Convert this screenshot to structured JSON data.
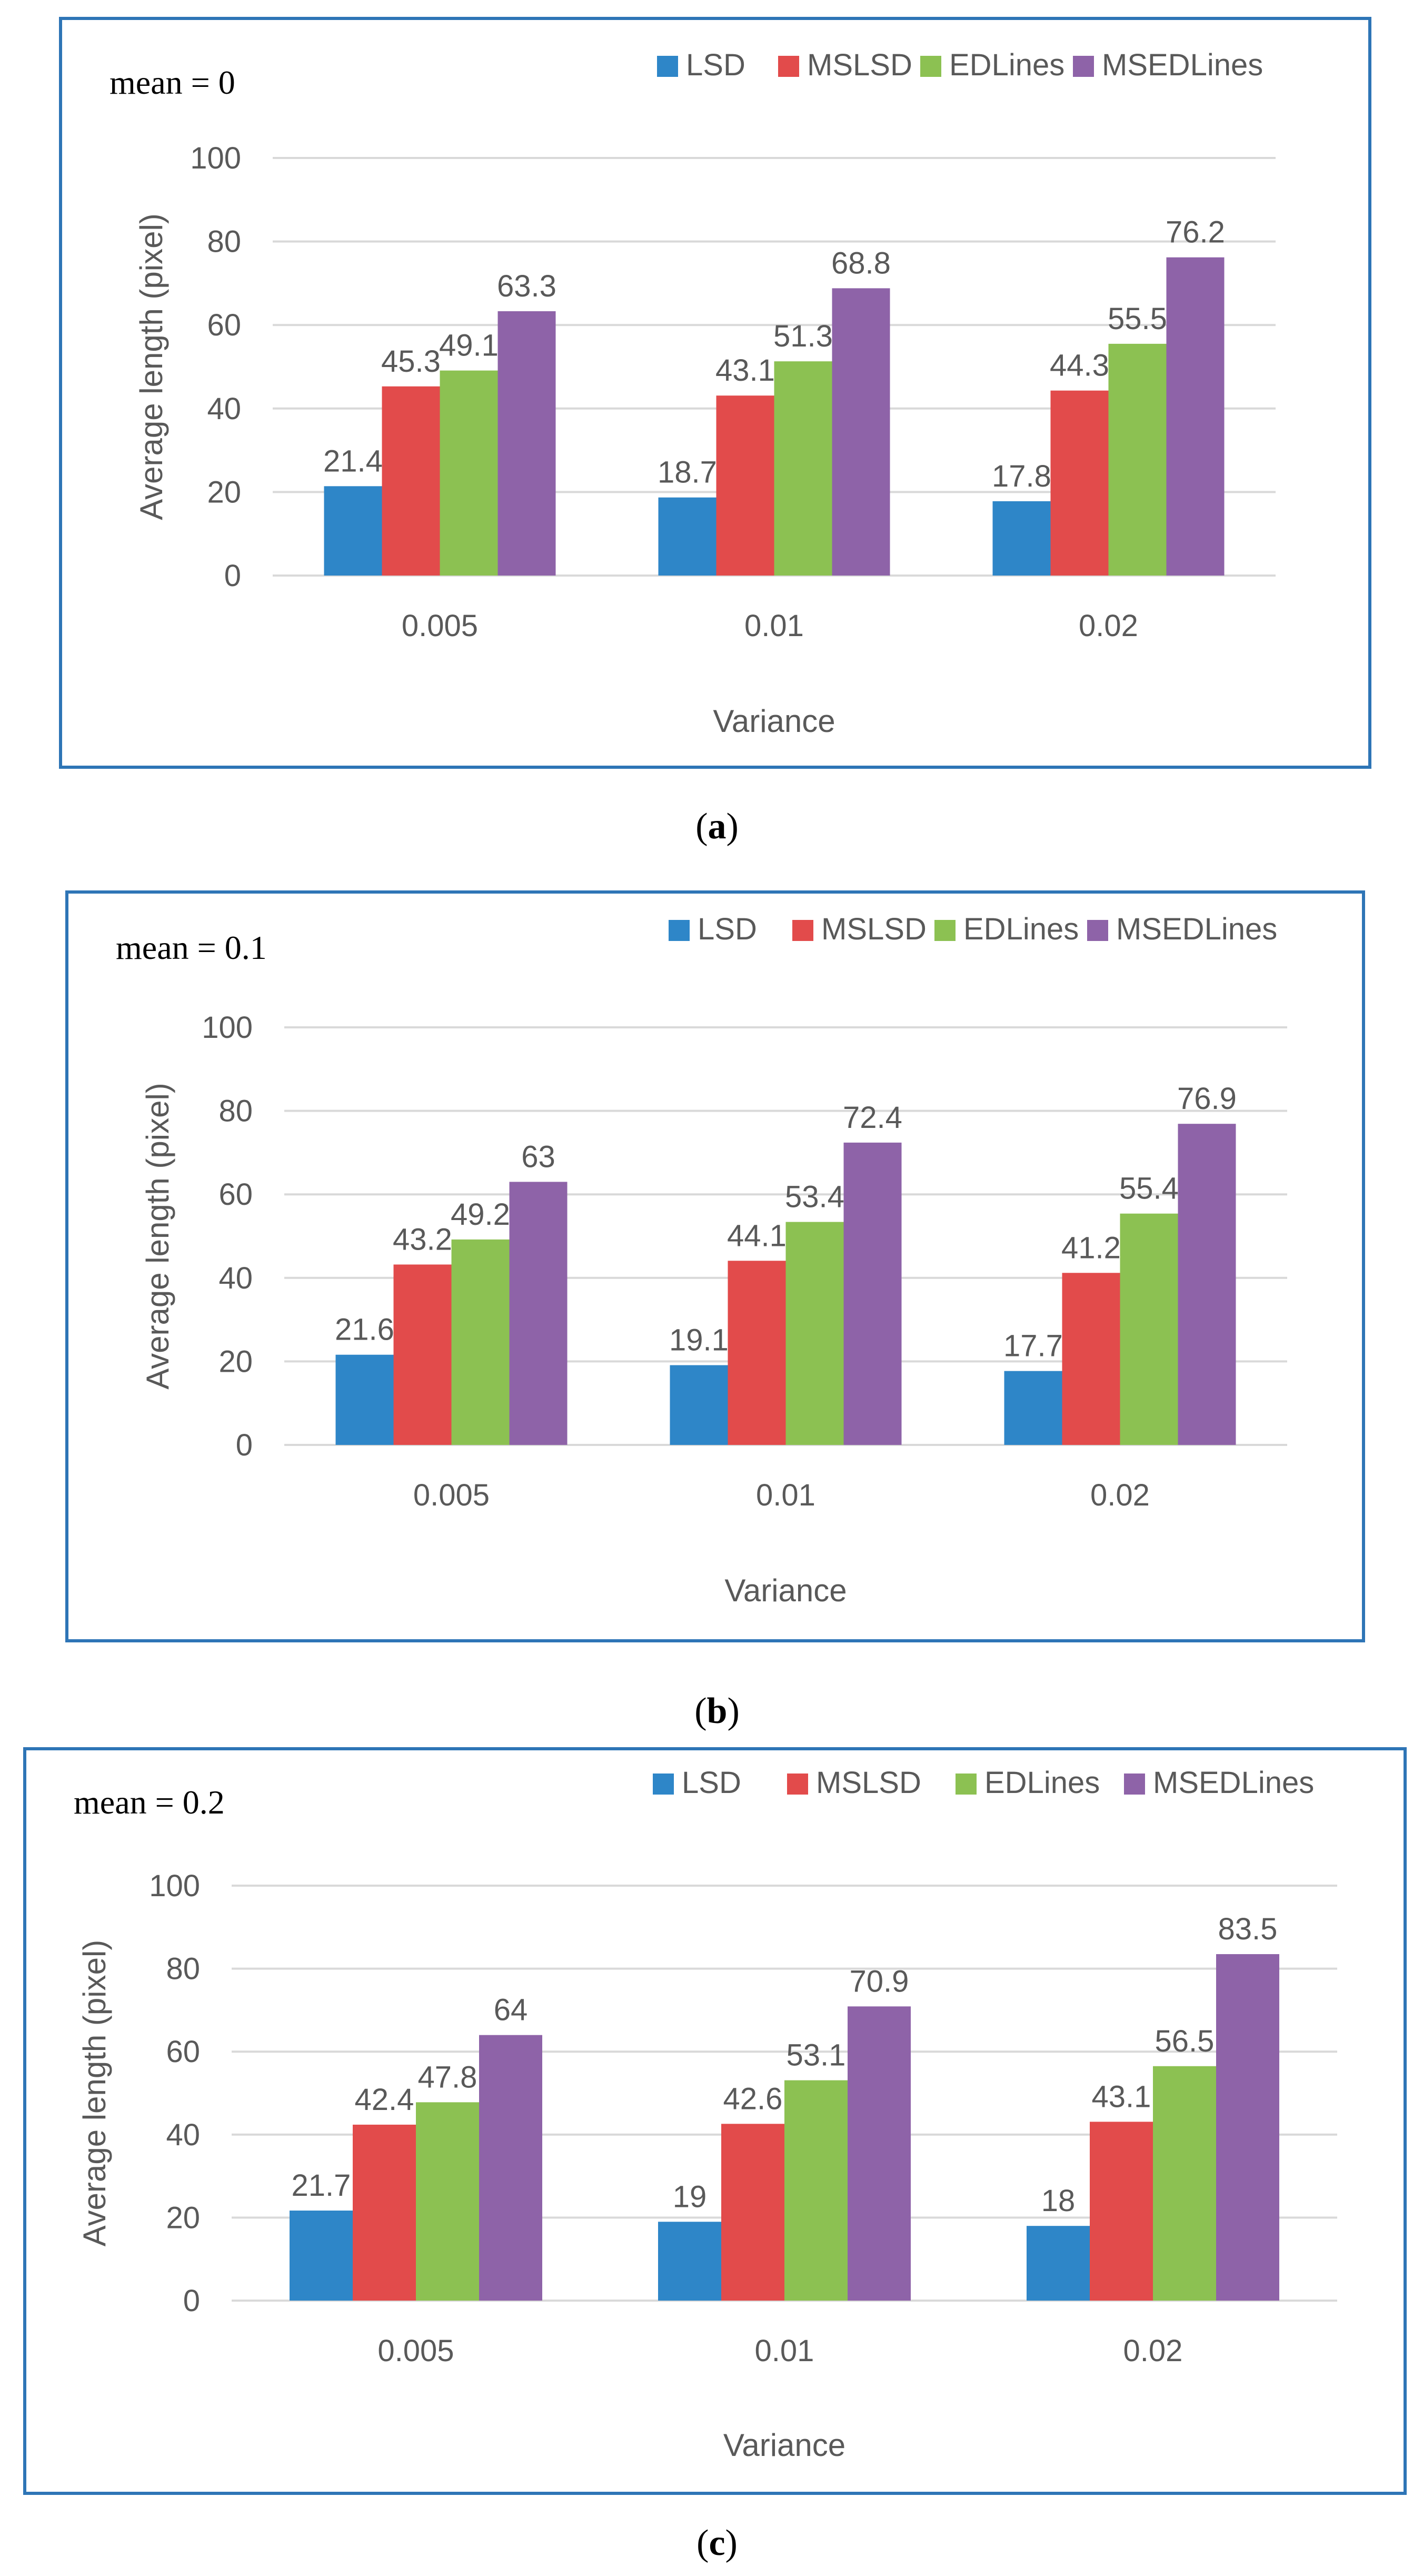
{
  "legend": [
    "LSD",
    "MSLSD",
    "EDLines",
    "MSEDLines"
  ],
  "colors": {
    "LSD": "#2E86C8",
    "MSLSD": "#E24B4B",
    "EDLines": "#8CC152",
    "MSEDLines": "#8E63A8",
    "border": "#2E75B6",
    "grid": "#D9D9D9",
    "text": "#595959"
  },
  "chart_data": [
    {
      "type": "bar",
      "id": "a",
      "title": "mean = 0",
      "caption": "a",
      "xlabel": "Variance",
      "ylabel": "Average length (pixel)",
      "ylim": [
        0,
        100
      ],
      "yticks": [
        0,
        20,
        40,
        60,
        80,
        100
      ],
      "categories": [
        "0.005",
        "0.01",
        "0.02"
      ],
      "series": [
        {
          "name": "LSD",
          "values": [
            21.4,
            18.7,
            17.8
          ]
        },
        {
          "name": "MSLSD",
          "values": [
            45.3,
            43.1,
            44.3
          ]
        },
        {
          "name": "EDLines",
          "values": [
            49.1,
            51.3,
            55.5
          ]
        },
        {
          "name": "MSEDLines",
          "values": [
            63.3,
            68.8,
            76.2
          ]
        }
      ]
    },
    {
      "type": "bar",
      "id": "b",
      "title": "mean = 0.1",
      "caption": "b",
      "xlabel": "Variance",
      "ylabel": "Average length (pixel)",
      "ylim": [
        0,
        100
      ],
      "yticks": [
        0,
        20,
        40,
        60,
        80,
        100
      ],
      "categories": [
        "0.005",
        "0.01",
        "0.02"
      ],
      "series": [
        {
          "name": "LSD",
          "values": [
            21.6,
            19.1,
            17.7
          ]
        },
        {
          "name": "MSLSD",
          "values": [
            43.2,
            44.1,
            41.2
          ]
        },
        {
          "name": "EDLines",
          "values": [
            49.2,
            53.4,
            55.4
          ]
        },
        {
          "name": "MSEDLines",
          "values": [
            63,
            72.4,
            76.9
          ]
        }
      ]
    },
    {
      "type": "bar",
      "id": "c",
      "title": "mean = 0.2",
      "caption": "c",
      "xlabel": "Variance",
      "ylabel": "Average length (pixel)",
      "ylim": [
        0,
        100
      ],
      "yticks": [
        0,
        20,
        40,
        60,
        80,
        100
      ],
      "categories": [
        "0.005",
        "0.01",
        "0.02"
      ],
      "series": [
        {
          "name": "LSD",
          "values": [
            21.7,
            19,
            18
          ]
        },
        {
          "name": "MSLSD",
          "values": [
            42.4,
            42.6,
            43.1
          ]
        },
        {
          "name": "EDLines",
          "values": [
            47.8,
            53.1,
            56.5
          ]
        },
        {
          "name": "MSEDLines",
          "values": [
            64,
            70.9,
            83.5
          ]
        }
      ]
    }
  ]
}
